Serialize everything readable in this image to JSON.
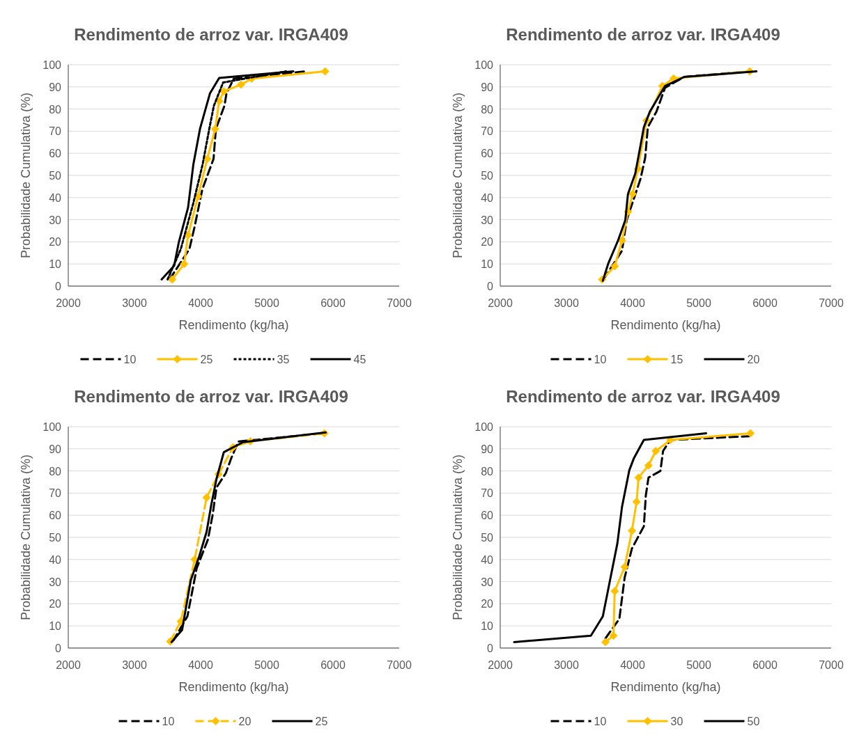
{
  "chart_data": [
    {
      "type": "line",
      "title": "Rendimento de arroz var. IRGA409",
      "xlabel": "Rendimento (kg/ha)",
      "ylabel": "Probabilidade Cumulativa (%)",
      "xlim": [
        2000,
        7000
      ],
      "ylim": [
        0,
        100
      ],
      "xticks": [
        2000,
        3000,
        4000,
        5000,
        6000,
        7000
      ],
      "yticks": [
        0,
        10,
        20,
        30,
        40,
        50,
        60,
        70,
        80,
        90,
        100
      ],
      "grid": "y",
      "legend": "bottom",
      "series": [
        {
          "name": "10",
          "color": "#000000",
          "line_style": "dashed",
          "marker": "none",
          "x": [
            3530,
            3830,
            3910,
            4025,
            4195,
            4230,
            4360,
            4390,
            4500,
            5570
          ],
          "values": [
            3,
            16.7,
            27,
            43.7,
            57.5,
            71,
            81.5,
            87,
            93.7,
            97
          ]
        },
        {
          "name": "25",
          "color": "#ffc000",
          "line_style": "solid",
          "marker": "diamond",
          "x": [
            3570,
            3750,
            3810,
            3960,
            4100,
            4220,
            4280,
            4350,
            4610,
            4770,
            5880
          ],
          "values": [
            3,
            10,
            23,
            40.5,
            57.5,
            71,
            83.6,
            88,
            91,
            93.7,
            97
          ]
        },
        {
          "name": "35",
          "color": "#000000",
          "line_style": "dotted",
          "marker": "none",
          "x": [
            3500,
            3700,
            3890,
            4030,
            4130,
            4200,
            4340,
            5290
          ],
          "values": [
            3,
            16.7,
            37.6,
            55,
            71,
            81.5,
            92,
            97
          ]
        },
        {
          "name": "45",
          "color": "#000000",
          "line_style": "solid",
          "marker": "none",
          "x": [
            3410,
            3600,
            3670,
            3810,
            3890,
            3990,
            4140,
            4280,
            5400
          ],
          "values": [
            3,
            9.2,
            19.8,
            35.5,
            55,
            71,
            87,
            94,
            97
          ]
        }
      ]
    },
    {
      "type": "line",
      "title": "Rendimento de arroz var. IRGA409",
      "xlabel": "Rendimento (kg/ha)",
      "ylabel": "Probabilidade Cumulativa (%)",
      "xlim": [
        2000,
        7000
      ],
      "ylim": [
        0,
        100
      ],
      "xticks": [
        2000,
        3000,
        4000,
        5000,
        6000,
        7000
      ],
      "yticks": [
        0,
        10,
        20,
        30,
        40,
        50,
        60,
        70,
        80,
        90,
        100
      ],
      "grid": "y",
      "legend": "bottom",
      "series": [
        {
          "name": "10",
          "color": "#000000",
          "line_style": "dashed",
          "marker": "none",
          "x": [
            3560,
            3840,
            3910,
            4120,
            4190,
            4230,
            4360,
            4490,
            4780,
            5790
          ],
          "values": [
            3,
            16,
            29.8,
            48.5,
            58,
            71.8,
            78.8,
            89.6,
            94.5,
            97
          ]
        },
        {
          "name": "15",
          "color": "#ffc000",
          "line_style": "solid",
          "marker": "diamond",
          "x": [
            3540,
            3730,
            3840,
            3930,
            4000,
            4080,
            4210,
            4450,
            4620,
            5770
          ],
          "values": [
            3,
            9,
            20.6,
            33.6,
            41.6,
            53,
            74.8,
            90.4,
            93.8,
            97
          ]
        },
        {
          "name": "20",
          "color": "#000000",
          "line_style": "solid",
          "marker": "none",
          "x": [
            3550,
            3630,
            3780,
            3890,
            3930,
            4040,
            4120,
            4170,
            4260,
            4490,
            4780,
            5870
          ],
          "values": [
            2.4,
            10,
            20.6,
            29.8,
            41.6,
            50.8,
            63.6,
            71.8,
            78.8,
            90.4,
            94.5,
            97
          ]
        }
      ]
    },
    {
      "type": "line",
      "title": "Rendimento de arroz var. IRGA409",
      "xlabel": "Rendimento (kg/ha)",
      "ylabel": "Probabilidade Cumulativa (%)",
      "xlim": [
        2000,
        7000
      ],
      "ylim": [
        0,
        100
      ],
      "xticks": [
        2000,
        3000,
        4000,
        5000,
        6000,
        7000
      ],
      "yticks": [
        0,
        10,
        20,
        30,
        40,
        50,
        60,
        70,
        80,
        90,
        100
      ],
      "grid": "y",
      "legend": "bottom",
      "series": [
        {
          "name": "10",
          "color": "#000000",
          "line_style": "dashed",
          "marker": "none",
          "x": [
            3580,
            3800,
            3940,
            4110,
            4180,
            4240,
            4380,
            4460,
            4570,
            5850
          ],
          "values": [
            3,
            14.3,
            36,
            49,
            60,
            72.5,
            79,
            85.6,
            93.3,
            97
          ]
        },
        {
          "name": "20",
          "color": "#ffc000",
          "line_style": "dashed",
          "marker": "diamond",
          "x": [
            3540,
            3700,
            3910,
            4090,
            4270,
            4490,
            4750,
            5870
          ],
          "values": [
            3,
            12,
            40,
            68,
            78.5,
            90.7,
            93.4,
            97
          ]
        },
        {
          "name": "25",
          "color": "#000000",
          "line_style": "solid",
          "marker": "none",
          "x": [
            3560,
            3720,
            3850,
            3980,
            4090,
            4160,
            4240,
            4350,
            4640,
            5890
          ],
          "values": [
            2.7,
            8.2,
            30.6,
            41.6,
            52.5,
            64.6,
            76.5,
            88.5,
            93,
            97.4
          ]
        }
      ]
    },
    {
      "type": "line",
      "title": "Rendimento de arroz var. IRGA409",
      "xlabel": "Rendimento (kg/ha)",
      "ylabel": "Probabilidade Cumulativa (%)",
      "xlim": [
        2000,
        7000
      ],
      "ylim": [
        0,
        100
      ],
      "xticks": [
        2000,
        3000,
        4000,
        5000,
        6000,
        7000
      ],
      "yticks": [
        0,
        10,
        20,
        30,
        40,
        50,
        60,
        70,
        80,
        90,
        100
      ],
      "grid": "y",
      "legend": "bottom",
      "series": [
        {
          "name": "10",
          "color": "#000000",
          "line_style": "dashed",
          "marker": "none",
          "x": [
            3590,
            3800,
            3880,
            3990,
            4170,
            4200,
            4240,
            4420,
            4460,
            4570,
            5760
          ],
          "values": [
            4.4,
            13.2,
            31.9,
            45,
            55,
            69,
            77,
            80,
            89,
            94,
            95.7
          ]
        },
        {
          "name": "30",
          "color": "#ffc000",
          "line_style": "solid",
          "marker": "diamond",
          "x": [
            3590,
            3710,
            3730,
            3880,
            3990,
            4060,
            4090,
            4240,
            4350,
            4570,
            5780
          ],
          "values": [
            2.7,
            5.6,
            25.7,
            36.6,
            53,
            66,
            77,
            82.5,
            89,
            94,
            97
          ]
        },
        {
          "name": "50",
          "color": "#000000",
          "line_style": "solid",
          "marker": "none",
          "x": [
            2210,
            3370,
            3550,
            3660,
            3770,
            3840,
            3950,
            4020,
            4170,
            5110
          ],
          "values": [
            2.7,
            5.6,
            14.3,
            30.8,
            47.3,
            63.8,
            80.3,
            85.8,
            94,
            97
          ]
        }
      ]
    }
  ]
}
